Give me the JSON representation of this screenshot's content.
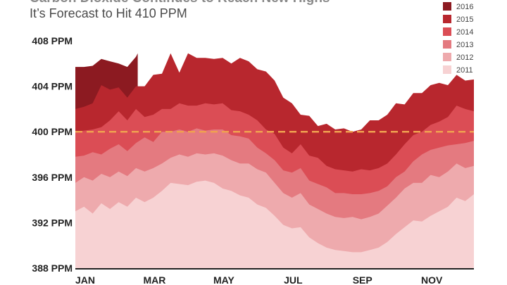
{
  "header": {
    "title": "Carbon Dioxide Continues to Reach New Highs",
    "subtitle": "It’s Forecast to Hit 410 PPM"
  },
  "chart_data": {
    "type": "area",
    "title": "Carbon Dioxide Continues to Reach New Highs",
    "subtitle": "It’s Forecast to Hit 410 PPM",
    "xlabel": "",
    "ylabel": "",
    "ylim": [
      388,
      408
    ],
    "y_ticks": [
      {
        "value": 408,
        "label": "408 PPM"
      },
      {
        "value": 404,
        "label": "404 PPM"
      },
      {
        "value": 400,
        "label": "400 PPM"
      },
      {
        "value": 396,
        "label": "396 PPM"
      },
      {
        "value": 392,
        "label": "392 PPM"
      },
      {
        "value": 388,
        "label": "388 PPM"
      }
    ],
    "x_ticks": [
      {
        "value": 1,
        "label": "JAN"
      },
      {
        "value": 3,
        "label": "MAR"
      },
      {
        "value": 5,
        "label": "MAY"
      },
      {
        "value": 7,
        "label": "JUL"
      },
      {
        "value": 9,
        "label": "SEP"
      },
      {
        "value": 11,
        "label": "NOV"
      }
    ],
    "xlim": [
      1,
      12.5
    ],
    "reference_line": {
      "value": 400,
      "label": "400 PPM",
      "color": "#f0a050"
    },
    "legend_position": "top-right",
    "colors": {
      "2016": "#8c1a21",
      "2015": "#b8272e",
      "2014": "#db4d55",
      "2013": "#e47a80",
      "2012": "#eeaaad",
      "2011": "#f7d2d3"
    },
    "series": [
      {
        "name": "2016",
        "x": [
          1,
          1.25,
          1.5,
          1.75,
          2,
          2.25,
          2.5,
          2.75,
          2.8
        ],
        "values": [
          405.7,
          405.7,
          405.8,
          406.4,
          406.2,
          406.0,
          405.7,
          406.6,
          406.9
        ]
      },
      {
        "name": "2015",
        "x": [
          1,
          1.25,
          1.5,
          1.75,
          2,
          2.25,
          2.5,
          2.75,
          3,
          3.25,
          3.5,
          3.75,
          4,
          4.25,
          4.5,
          4.75,
          5,
          5.25,
          5.5,
          5.75,
          6,
          6.25,
          6.5,
          6.75,
          7,
          7.25,
          7.5,
          7.75,
          8,
          8.25,
          8.5,
          8.75,
          9,
          9.25,
          9.5,
          9.75,
          10,
          10.25,
          10.5,
          10.75,
          11,
          11.25,
          11.5,
          11.75,
          12,
          12.25,
          12.5
        ],
        "values": [
          402.0,
          402.2,
          402.5,
          404.1,
          403.7,
          403.9,
          403.0,
          404.0,
          404.0,
          405.0,
          405.1,
          406.9,
          405.2,
          406.9,
          406.5,
          406.5,
          406.4,
          406.5,
          406.0,
          406.5,
          406.2,
          405.5,
          405.3,
          404.5,
          403.0,
          402.5,
          401.5,
          401.4,
          400.5,
          400.7,
          400.2,
          400.3,
          400.0,
          400.2,
          401.0,
          401.0,
          401.5,
          402.5,
          402.4,
          403.4,
          403.4,
          404.1,
          404.3,
          404.1,
          405.0,
          404.5,
          404.6
        ]
      },
      {
        "name": "2014",
        "x": [
          1,
          1.25,
          1.5,
          1.75,
          2,
          2.25,
          2.5,
          2.75,
          3,
          3.25,
          3.5,
          3.75,
          4,
          4.25,
          4.5,
          4.75,
          5,
          5.25,
          5.5,
          5.75,
          6,
          6.25,
          6.5,
          6.75,
          7,
          7.25,
          7.5,
          7.75,
          8,
          8.25,
          8.5,
          8.75,
          9,
          9.25,
          9.5,
          9.75,
          10,
          10.25,
          10.5,
          10.75,
          11,
          11.25,
          11.5,
          11.75,
          12,
          12.25,
          12.5
        ],
        "values": [
          400.0,
          400.1,
          400.2,
          400.4,
          401.0,
          401.8,
          401.0,
          402.0,
          401.3,
          401.5,
          402.0,
          402.0,
          402.5,
          402.3,
          402.3,
          402.5,
          402.4,
          402.5,
          401.9,
          401.8,
          401.5,
          401.0,
          400.2,
          399.8,
          398.6,
          398.1,
          398.9,
          397.9,
          397.7,
          397.0,
          396.7,
          396.6,
          396.5,
          396.7,
          396.6,
          396.8,
          397.2,
          398.0,
          398.9,
          399.7,
          400.0,
          400.6,
          400.9,
          401.3,
          402.3,
          402.0,
          401.8
        ]
      },
      {
        "name": "2013",
        "x": [
          1,
          1.25,
          1.5,
          1.75,
          2,
          2.25,
          2.5,
          2.75,
          3,
          3.25,
          3.5,
          3.75,
          4,
          4.25,
          4.5,
          4.75,
          5,
          5.25,
          5.5,
          5.75,
          6,
          6.25,
          6.5,
          6.75,
          7,
          7.25,
          7.5,
          7.75,
          8,
          8.25,
          8.5,
          8.75,
          9,
          9.25,
          9.5,
          9.75,
          10,
          10.25,
          10.5,
          10.75,
          11,
          11.25,
          11.5,
          11.75,
          12,
          12.25,
          12.5
        ],
        "values": [
          397.8,
          397.9,
          398.2,
          398.0,
          398.5,
          398.9,
          398.3,
          399.0,
          399.5,
          399.1,
          400.0,
          400.0,
          400.2,
          400.0,
          400.3,
          400.1,
          400.2,
          400.2,
          399.7,
          399.6,
          399.4,
          398.6,
          398.1,
          397.5,
          396.6,
          396.4,
          396.8,
          395.7,
          395.4,
          395.1,
          394.6,
          394.6,
          394.5,
          394.5,
          394.6,
          394.8,
          395.2,
          396.0,
          396.5,
          397.4,
          398.0,
          398.4,
          398.6,
          398.8,
          398.9,
          399.0,
          399.2
        ]
      },
      {
        "name": "2012",
        "x": [
          1,
          1.25,
          1.5,
          1.75,
          2,
          2.25,
          2.5,
          2.75,
          3,
          3.25,
          3.5,
          3.75,
          4,
          4.25,
          4.5,
          4.75,
          5,
          5.25,
          5.5,
          5.75,
          6,
          6.25,
          6.5,
          6.75,
          7,
          7.25,
          7.5,
          7.75,
          8,
          8.25,
          8.5,
          8.75,
          9,
          9.25,
          9.5,
          9.75,
          10,
          10.25,
          10.5,
          10.75,
          11,
          11.25,
          11.5,
          11.75,
          12,
          12.25,
          12.5
        ],
        "values": [
          395.5,
          396.0,
          395.7,
          396.3,
          396.0,
          396.5,
          396.1,
          396.8,
          396.5,
          396.8,
          397.2,
          397.7,
          398.0,
          397.8,
          398.1,
          398.0,
          398.1,
          397.9,
          397.5,
          397.2,
          397.2,
          396.7,
          396.4,
          395.5,
          394.6,
          394.2,
          394.6,
          393.6,
          393.2,
          392.8,
          392.5,
          392.4,
          392.5,
          392.3,
          392.5,
          392.8,
          393.5,
          394.2,
          395.0,
          395.5,
          395.5,
          396.2,
          396.0,
          396.5,
          397.2,
          396.8,
          397.0
        ]
      },
      {
        "name": "2011",
        "x": [
          1,
          1.25,
          1.5,
          1.75,
          2,
          2.25,
          2.5,
          2.75,
          3,
          3.25,
          3.5,
          3.75,
          4,
          4.25,
          4.5,
          4.75,
          5,
          5.25,
          5.5,
          5.75,
          6,
          6.25,
          6.5,
          6.75,
          7,
          7.25,
          7.5,
          7.75,
          8,
          8.25,
          8.5,
          8.75,
          9,
          9.25,
          9.5,
          9.75,
          10,
          10.25,
          10.5,
          10.75,
          11,
          11.25,
          11.5,
          11.75,
          12,
          12.25,
          12.5
        ],
        "values": [
          393.0,
          393.4,
          392.8,
          393.7,
          393.2,
          393.8,
          393.4,
          394.2,
          393.8,
          394.2,
          394.8,
          395.5,
          395.4,
          395.3,
          395.6,
          395.7,
          395.5,
          395.0,
          394.8,
          394.4,
          394.2,
          393.6,
          393.3,
          392.6,
          391.8,
          391.5,
          391.6,
          390.7,
          390.2,
          389.8,
          389.6,
          389.5,
          389.4,
          389.4,
          389.6,
          389.8,
          390.3,
          391.0,
          391.6,
          392.2,
          392.1,
          392.6,
          393.0,
          393.4,
          394.2,
          393.9,
          394.5
        ]
      }
    ]
  }
}
